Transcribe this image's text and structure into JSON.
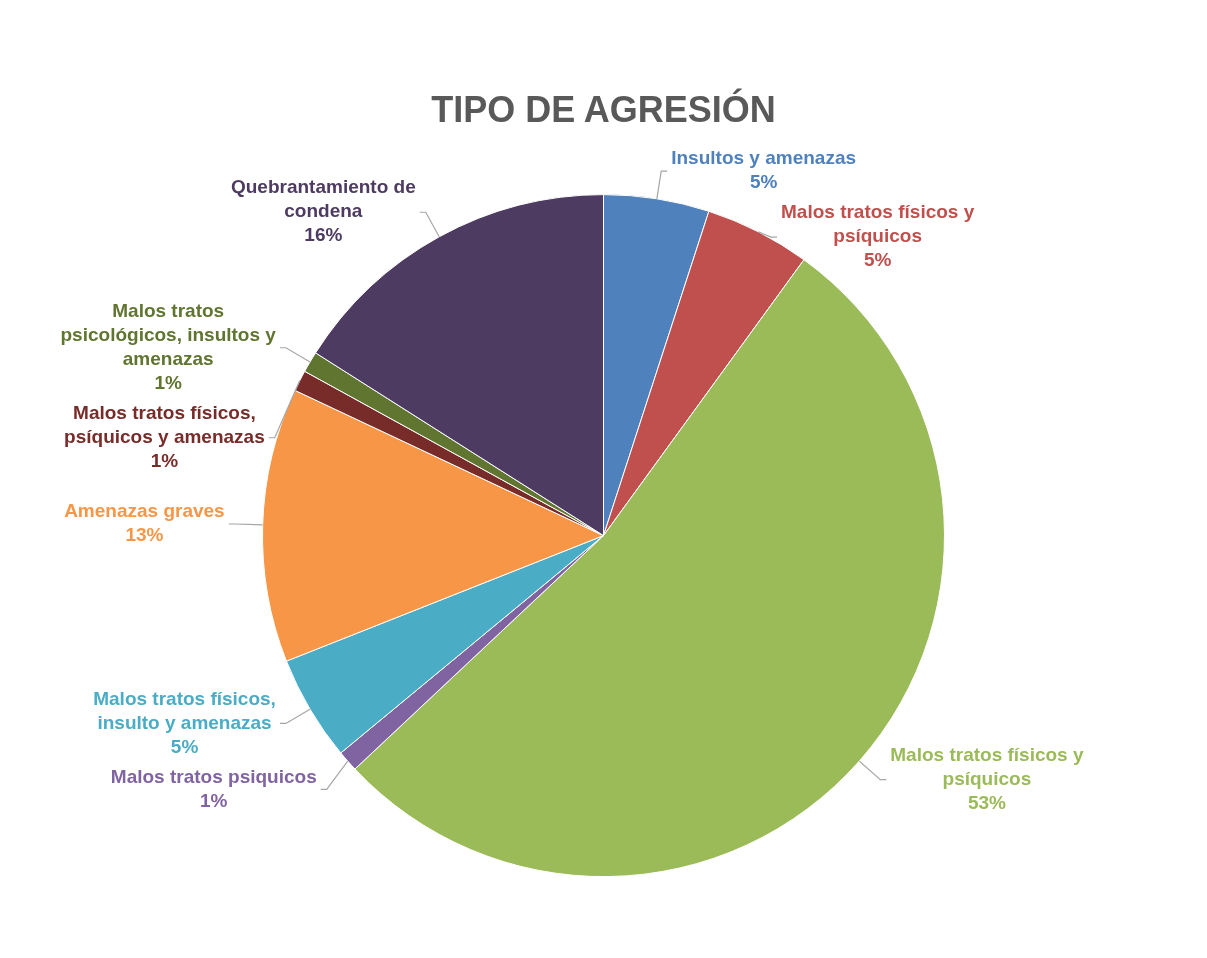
{
  "chart_data": {
    "type": "pie",
    "title": "TIPO DE AGRESIÓN",
    "categories": [
      "Insultos y amenazas",
      "Malos tratos físicos y psíquicos",
      "Malos tratos físicos y psíquicos",
      "Malos tratos psiquicos",
      "Malos tratos físicos, insulto y amenazas",
      "Amenazas graves",
      "Malos tratos físicos, psíquicos y amenazas",
      "Malos tratos psicológicos, insultos y amenazas",
      "Quebrantamiento de condena"
    ],
    "values": [
      5,
      5,
      53,
      1,
      5,
      13,
      1,
      1,
      16
    ],
    "value_labels": [
      "5%",
      "5%",
      "53%",
      "1%",
      "5%",
      "13%",
      "1%",
      "1%",
      "16%"
    ],
    "colors": [
      "#4f81bd",
      "#c0504d",
      "#9bbb59",
      "#8064a2",
      "#4bacc6",
      "#f79646",
      "#772c2a",
      "#5f7530",
      "#4d3b62"
    ],
    "legend": false
  }
}
